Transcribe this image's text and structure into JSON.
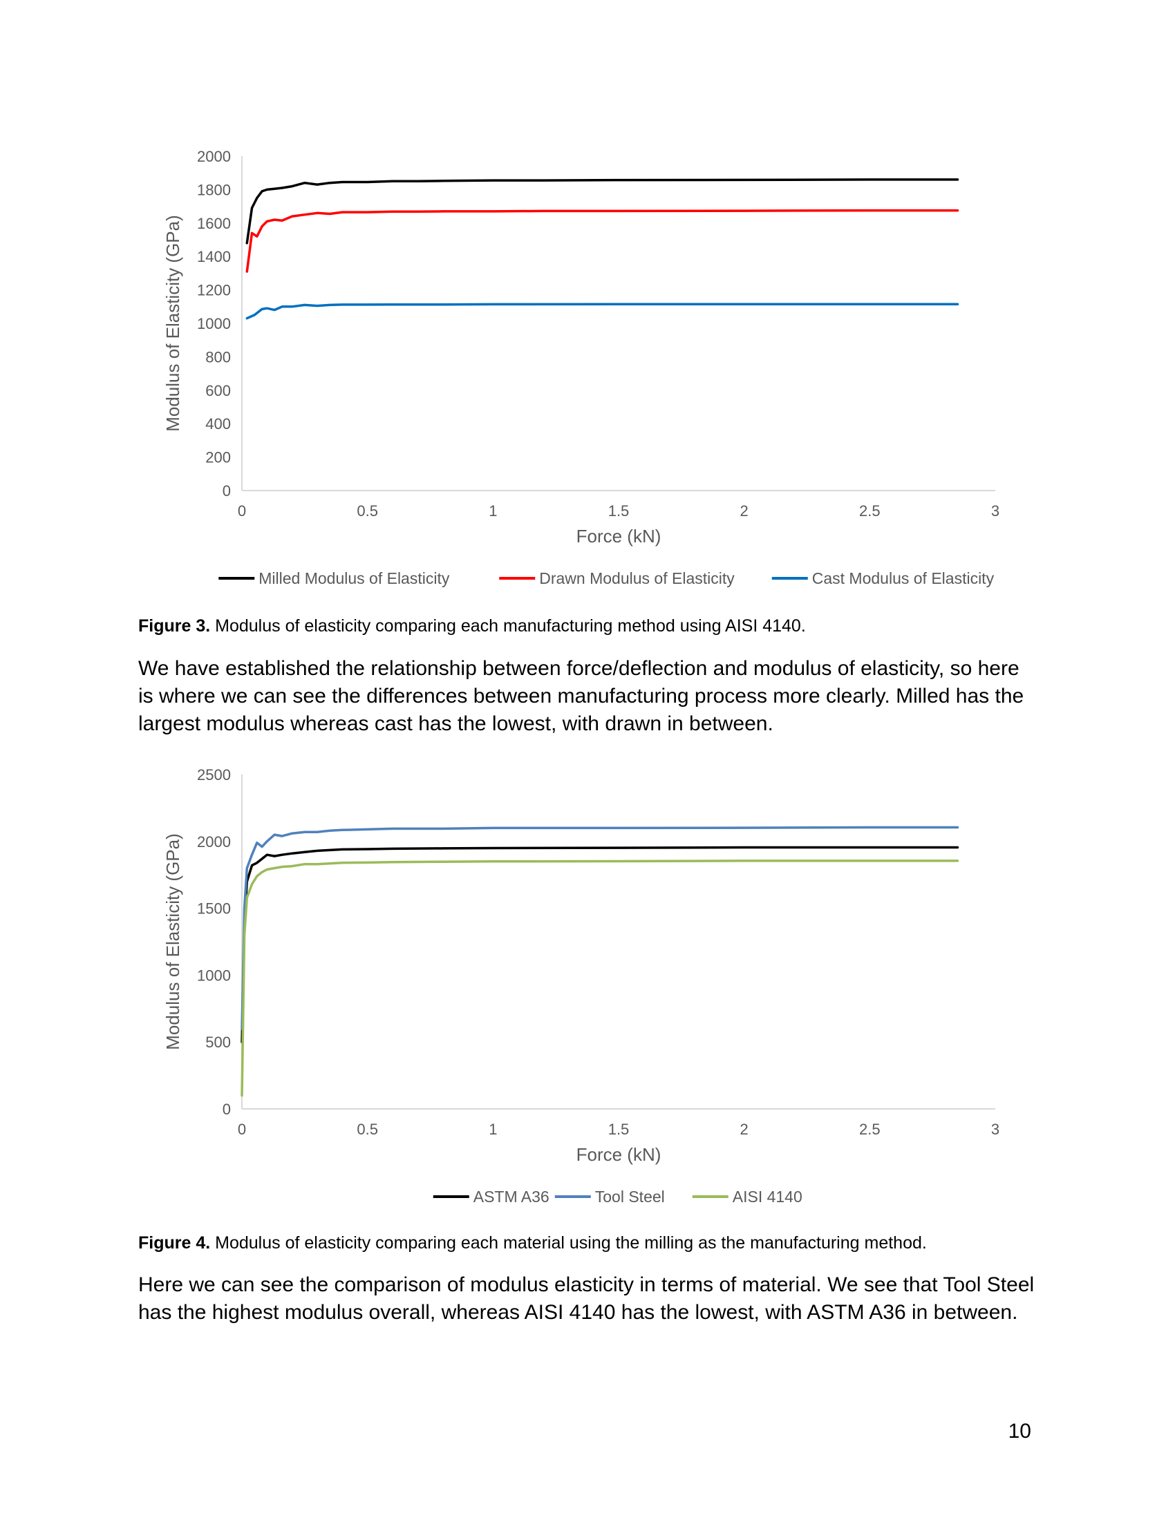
{
  "chart_data": [
    {
      "type": "line",
      "title": "",
      "xlabel": "Force (kN)",
      "ylabel": "Modulus of Elasticity (GPa)",
      "xlim": [
        0,
        3
      ],
      "ylim": [
        0,
        2000
      ],
      "xticks": [
        "0",
        "0.5",
        "1",
        "1.5",
        "2",
        "2.5",
        "3"
      ],
      "yticks": [
        "0",
        "200",
        "400",
        "600",
        "800",
        "1000",
        "1200",
        "1400",
        "1600",
        "1800",
        "2000"
      ],
      "grid": false,
      "legend_position": "bottom",
      "series": [
        {
          "name": "Milled Modulus of Elasticity",
          "color": "#000000",
          "x": [
            0.02,
            0.04,
            0.06,
            0.08,
            0.1,
            0.13,
            0.16,
            0.2,
            0.25,
            0.3,
            0.35,
            0.4,
            0.45,
            0.5,
            0.6,
            0.7,
            0.8,
            1.0,
            1.2,
            1.5,
            2.0,
            2.5,
            2.85
          ],
          "y": [
            1480,
            1690,
            1750,
            1790,
            1800,
            1805,
            1810,
            1820,
            1840,
            1830,
            1840,
            1845,
            1845,
            1845,
            1850,
            1850,
            1852,
            1855,
            1855,
            1857,
            1858,
            1860,
            1860
          ]
        },
        {
          "name": "Drawn Modulus of Elasticity",
          "color": "#ff0000",
          "x": [
            0.02,
            0.04,
            0.06,
            0.08,
            0.1,
            0.13,
            0.16,
            0.2,
            0.25,
            0.3,
            0.35,
            0.4,
            0.45,
            0.5,
            0.6,
            0.7,
            0.8,
            1.0,
            1.2,
            1.5,
            2.0,
            2.5,
            2.85
          ],
          "y": [
            1310,
            1540,
            1520,
            1580,
            1610,
            1620,
            1615,
            1640,
            1650,
            1660,
            1655,
            1665,
            1665,
            1665,
            1668,
            1668,
            1670,
            1670,
            1672,
            1672,
            1673,
            1675,
            1675
          ]
        },
        {
          "name": "Cast Modulus of Elasticity",
          "color": "#0070c0",
          "x": [
            0.02,
            0.05,
            0.08,
            0.1,
            0.13,
            0.16,
            0.2,
            0.25,
            0.3,
            0.35,
            0.4,
            0.5,
            0.6,
            0.8,
            1.0,
            1.5,
            2.0,
            2.5,
            2.85
          ],
          "y": [
            1030,
            1050,
            1085,
            1090,
            1080,
            1100,
            1100,
            1110,
            1105,
            1110,
            1112,
            1112,
            1113,
            1113,
            1114,
            1115,
            1115,
            1115,
            1115
          ]
        }
      ]
    },
    {
      "type": "line",
      "title": "",
      "xlabel": "Force (kN)",
      "ylabel": "Modulus of Elasticity (GPa)",
      "xlim": [
        0,
        3
      ],
      "ylim": [
        0,
        2500
      ],
      "xticks": [
        "0",
        "0.5",
        "1",
        "1.5",
        "2",
        "2.5",
        "3"
      ],
      "yticks": [
        "0",
        "500",
        "1000",
        "1500",
        "2000",
        "2500"
      ],
      "grid": false,
      "legend_position": "bottom",
      "series": [
        {
          "name": "ASTM A36",
          "color": "#000000",
          "x": [
            0.0,
            0.01,
            0.02,
            0.04,
            0.06,
            0.08,
            0.1,
            0.13,
            0.16,
            0.2,
            0.25,
            0.3,
            0.35,
            0.4,
            0.5,
            0.6,
            0.8,
            1.0,
            1.5,
            2.0,
            2.5,
            2.85
          ],
          "y": [
            500,
            1400,
            1700,
            1820,
            1840,
            1870,
            1900,
            1890,
            1900,
            1910,
            1920,
            1930,
            1935,
            1940,
            1942,
            1945,
            1948,
            1950,
            1952,
            1955,
            1955,
            1955
          ]
        },
        {
          "name": "Tool Steel",
          "color": "#4f81bd",
          "x": [
            0.0,
            0.01,
            0.02,
            0.04,
            0.06,
            0.08,
            0.1,
            0.13,
            0.16,
            0.2,
            0.25,
            0.3,
            0.35,
            0.4,
            0.5,
            0.6,
            0.8,
            1.0,
            1.5,
            2.0,
            2.5,
            2.85
          ],
          "y": [
            600,
            1500,
            1800,
            1900,
            1990,
            1960,
            2000,
            2050,
            2040,
            2060,
            2070,
            2070,
            2080,
            2085,
            2090,
            2095,
            2095,
            2100,
            2100,
            2102,
            2105,
            2105
          ]
        },
        {
          "name": "AISI 4140",
          "color": "#9bbb59",
          "x": [
            0.0,
            0.01,
            0.02,
            0.04,
            0.06,
            0.08,
            0.1,
            0.13,
            0.16,
            0.2,
            0.25,
            0.3,
            0.35,
            0.4,
            0.5,
            0.6,
            0.8,
            1.0,
            1.5,
            2.0,
            2.5,
            2.85
          ],
          "y": [
            100,
            1300,
            1580,
            1680,
            1740,
            1770,
            1790,
            1800,
            1810,
            1815,
            1830,
            1830,
            1835,
            1840,
            1842,
            1845,
            1848,
            1850,
            1852,
            1855,
            1855,
            1855
          ]
        }
      ]
    }
  ],
  "figure3": {
    "label": "Figure 3.",
    "text": " Modulus of elasticity comparing each manufacturing method using AISI 4140."
  },
  "paragraph1": "We have established the relationship between force/deflection and modulus of elasticity, so here is where we can see the differences between manufacturing process more clearly. Milled has the largest modulus whereas cast has the lowest, with drawn in between.",
  "figure4": {
    "label": "Figure 4.",
    "text": " Modulus of elasticity comparing each material using the milling as the manufacturing method."
  },
  "paragraph2": "Here we can see the comparison of modulus elasticity in terms of material. We see that Tool Steel has the highest modulus overall, whereas AISI 4140 has the lowest, with ASTM A36 in between.",
  "page_number": "10"
}
